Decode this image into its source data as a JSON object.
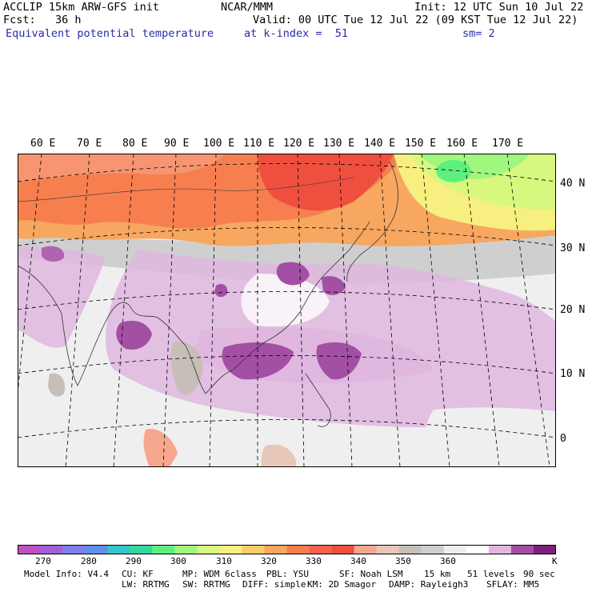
{
  "header": {
    "line1_left": "ACCLIP 15km ARW-GFS init",
    "line1_center": "NCAR/MMM",
    "line1_right": "Init: 12 UTC Sun 10 Jul 22",
    "line2_left": "Fcst:   36 h",
    "line2_right": "Valid: 00 UTC Tue 12 Jul 22 (09 KST Tue 12 Jul 22)",
    "field_name": "Equivalent potential temperature",
    "level": "at k-index =  51",
    "smoothing": "sm= 2"
  },
  "map": {
    "lon_labels": [
      "60 E",
      "70 E",
      "80 E",
      "90 E",
      "100 E",
      "110 E",
      "120 E",
      "130 E",
      "140 E",
      "150 E",
      "160 E",
      "170 E"
    ],
    "lat_labels": [
      "40 N",
      "30 N",
      "20 N",
      "10 N",
      "0"
    ]
  },
  "colorbar": {
    "colors": [
      "#c34fc3",
      "#a35fd9",
      "#7f7fe8",
      "#5f8fe8",
      "#35c7c7",
      "#35d79f",
      "#5fef7f",
      "#9ff77f",
      "#d7f77f",
      "#f7ef7f",
      "#f7cf67",
      "#f7a75f",
      "#f77f4f",
      "#f75f4f",
      "#ef4f3f",
      "#f7a78f",
      "#e7c7b7",
      "#c7bfb7",
      "#cfcfcf",
      "#efefef",
      "#ffffff",
      "#dfb7df",
      "#a34fa3",
      "#7f1f7f"
    ],
    "labels": [
      "270",
      "280",
      "290",
      "300",
      "310",
      "320",
      "330",
      "340",
      "350",
      "360"
    ],
    "unit": "K"
  },
  "model_info": {
    "line1": [
      "Model Info: V4.4",
      "CU: KF",
      "MP: WDM 6class",
      "PBL: YSU",
      "SF: Noah LSM",
      "15 km",
      "51 levels",
      "90 sec"
    ],
    "line2": [
      "LW: RRTMG",
      "SW: RRTMG",
      "DIFF: simple",
      "KM: 2D Smagor",
      "DAMP: Rayleigh3",
      "SFLAY: MM5"
    ]
  }
}
